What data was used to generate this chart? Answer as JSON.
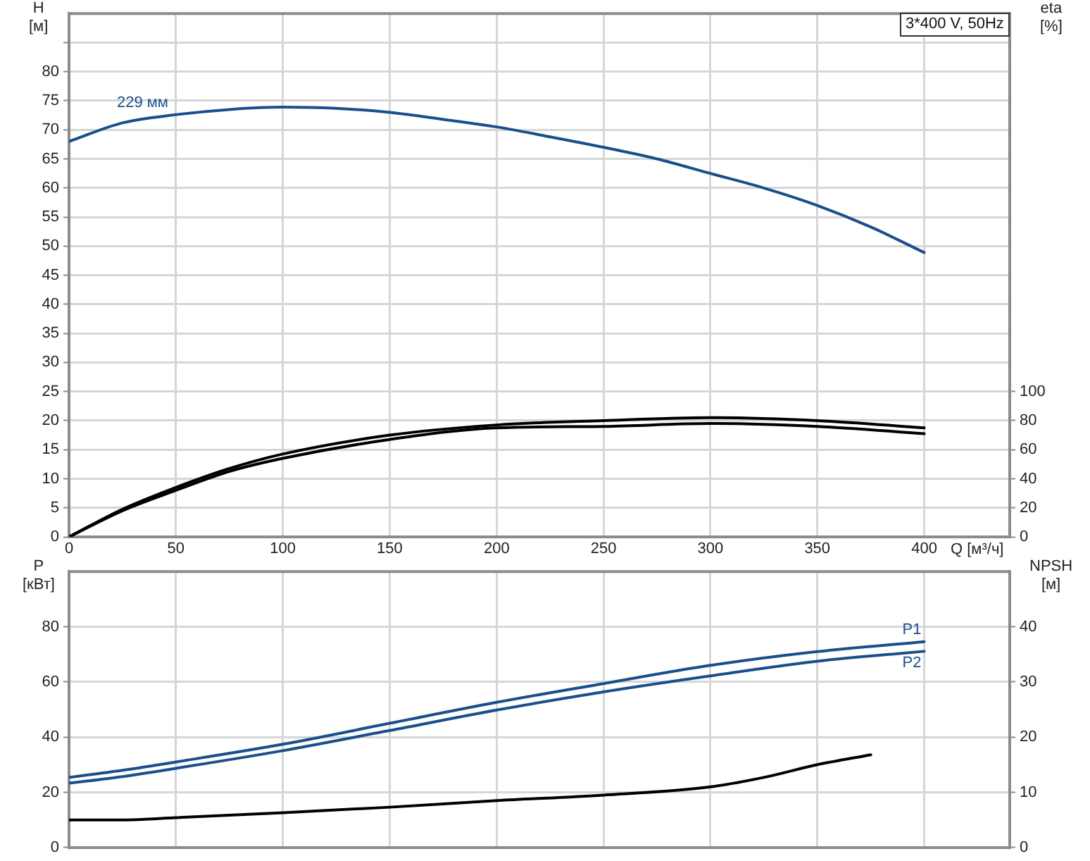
{
  "chart_data": [
    {
      "type": "line",
      "title": "3*400 V, 50Hz",
      "xlabel": "Q [м³/ч]",
      "ylabel": "H [м]",
      "y2label": "eta [%]",
      "xlim": [
        0,
        440
      ],
      "xticks": [
        0,
        50,
        100,
        150,
        200,
        250,
        300,
        350,
        400
      ],
      "ylim": [
        0,
        90
      ],
      "yticks": [
        0,
        5,
        10,
        15,
        20,
        25,
        30,
        35,
        40,
        45,
        50,
        55,
        60,
        65,
        70,
        75,
        80,
        {
          "value": 85,
          "label": null
        }
      ],
      "y2lim": [
        0,
        360
      ],
      "y2ticks": [
        0,
        20,
        40,
        60,
        80,
        100
      ],
      "grid": true,
      "series": [
        {
          "name": "229 мм",
          "color": "#1a4f8c",
          "x": [
            0,
            25,
            50,
            75,
            100,
            125,
            150,
            175,
            200,
            225,
            250,
            275,
            300,
            325,
            350,
            375,
            400
          ],
          "values": [
            68,
            71.2,
            72.6,
            73.5,
            73.9,
            73.7,
            73,
            71.8,
            70.5,
            68.8,
            67,
            65,
            62.5,
            60,
            57,
            53.3,
            48.9
          ]
        },
        {
          "color": "#000000",
          "axis": "y2",
          "x": [
            0,
            25,
            50,
            75,
            100,
            150,
            200,
            250,
            300,
            350,
            400
          ],
          "values": [
            0,
            19,
            34,
            47,
            57,
            70,
            77,
            80,
            82,
            80,
            75
          ]
        },
        {
          "color": "#000000",
          "axis": "y2",
          "x": [
            0,
            25,
            50,
            75,
            100,
            150,
            200,
            250,
            300,
            350,
            400
          ],
          "values": [
            0,
            18,
            32,
            45,
            54,
            67,
            75,
            76,
            78,
            76,
            71
          ]
        }
      ]
    },
    {
      "type": "line",
      "ylabel": "P [кВт]",
      "y2label": "NPSH [м]",
      "xlim": [
        0,
        440
      ],
      "xticks": [
        0,
        50,
        100,
        150,
        200,
        250,
        300,
        350,
        400
      ],
      "ylim": [
        0,
        100
      ],
      "yticks": [
        0,
        20,
        40,
        60,
        80
      ],
      "y2lim": [
        0,
        50
      ],
      "y2ticks": [
        0,
        10,
        20,
        30,
        40
      ],
      "grid": true,
      "tick_labels": "y",
      "series": [
        {
          "name": "P1",
          "color": "#1a4f8c",
          "x": [
            0,
            25,
            50,
            100,
            150,
            200,
            250,
            300,
            350,
            400
          ],
          "values": [
            25.4,
            28,
            31,
            37.4,
            45,
            52.6,
            59.4,
            66,
            71,
            74.6
          ]
        },
        {
          "name": "P2",
          "color": "#1a4f8c",
          "x": [
            0,
            25,
            50,
            100,
            150,
            200,
            250,
            300,
            350,
            400
          ],
          "values": [
            23.3,
            25.7,
            28.7,
            35.1,
            42.4,
            49.8,
            56.4,
            62.2,
            67.5,
            71.1
          ]
        },
        {
          "color": "#000000",
          "axis": "y2",
          "x": [
            0,
            25,
            50,
            100,
            150,
            200,
            250,
            300,
            325,
            350,
            375
          ],
          "values": [
            5,
            5,
            5.4,
            6.3,
            7.3,
            8.5,
            9.5,
            11,
            12.7,
            15,
            16.8
          ]
        }
      ]
    }
  ]
}
